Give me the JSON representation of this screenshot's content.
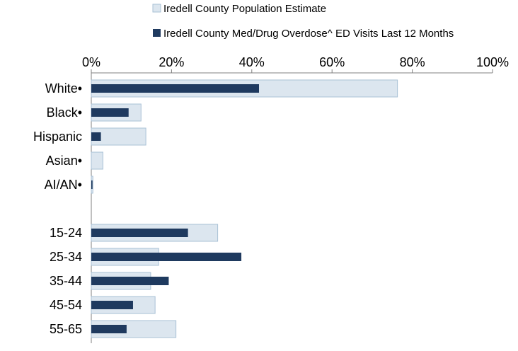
{
  "chart_data": {
    "type": "bar",
    "orientation": "horizontal",
    "categories": [
      "White•",
      "Black•",
      "Hispanic",
      "Asian•",
      "AI/AN•",
      "",
      "15-24",
      "25-34",
      "35-44",
      "45-54",
      "55-65"
    ],
    "series": [
      {
        "name": "Iredell County Population Estimate",
        "color": "#dce6ef",
        "border": "#a9c1d6",
        "values": [
          76.3,
          12.4,
          13.6,
          2.9,
          0.4,
          null,
          31.5,
          16.8,
          14.8,
          15.9,
          21.1
        ]
      },
      {
        "name": "Iredell County Med/Drug Overdose^ ED Visits Last 12 Months",
        "color": "#1f3a5f",
        "values": [
          41.8,
          9.3,
          2.4,
          0,
          0.3,
          null,
          24.1,
          37.4,
          19.3,
          10.4,
          8.8
        ]
      }
    ],
    "xlim": [
      0,
      100
    ],
    "xticks": [
      "0%",
      "20%",
      "40%",
      "60%",
      "80%",
      "100%"
    ],
    "tick_values": [
      0,
      20,
      40,
      60,
      80,
      100
    ],
    "axis_position": "top",
    "legend_position": "top",
    "grid": false
  }
}
